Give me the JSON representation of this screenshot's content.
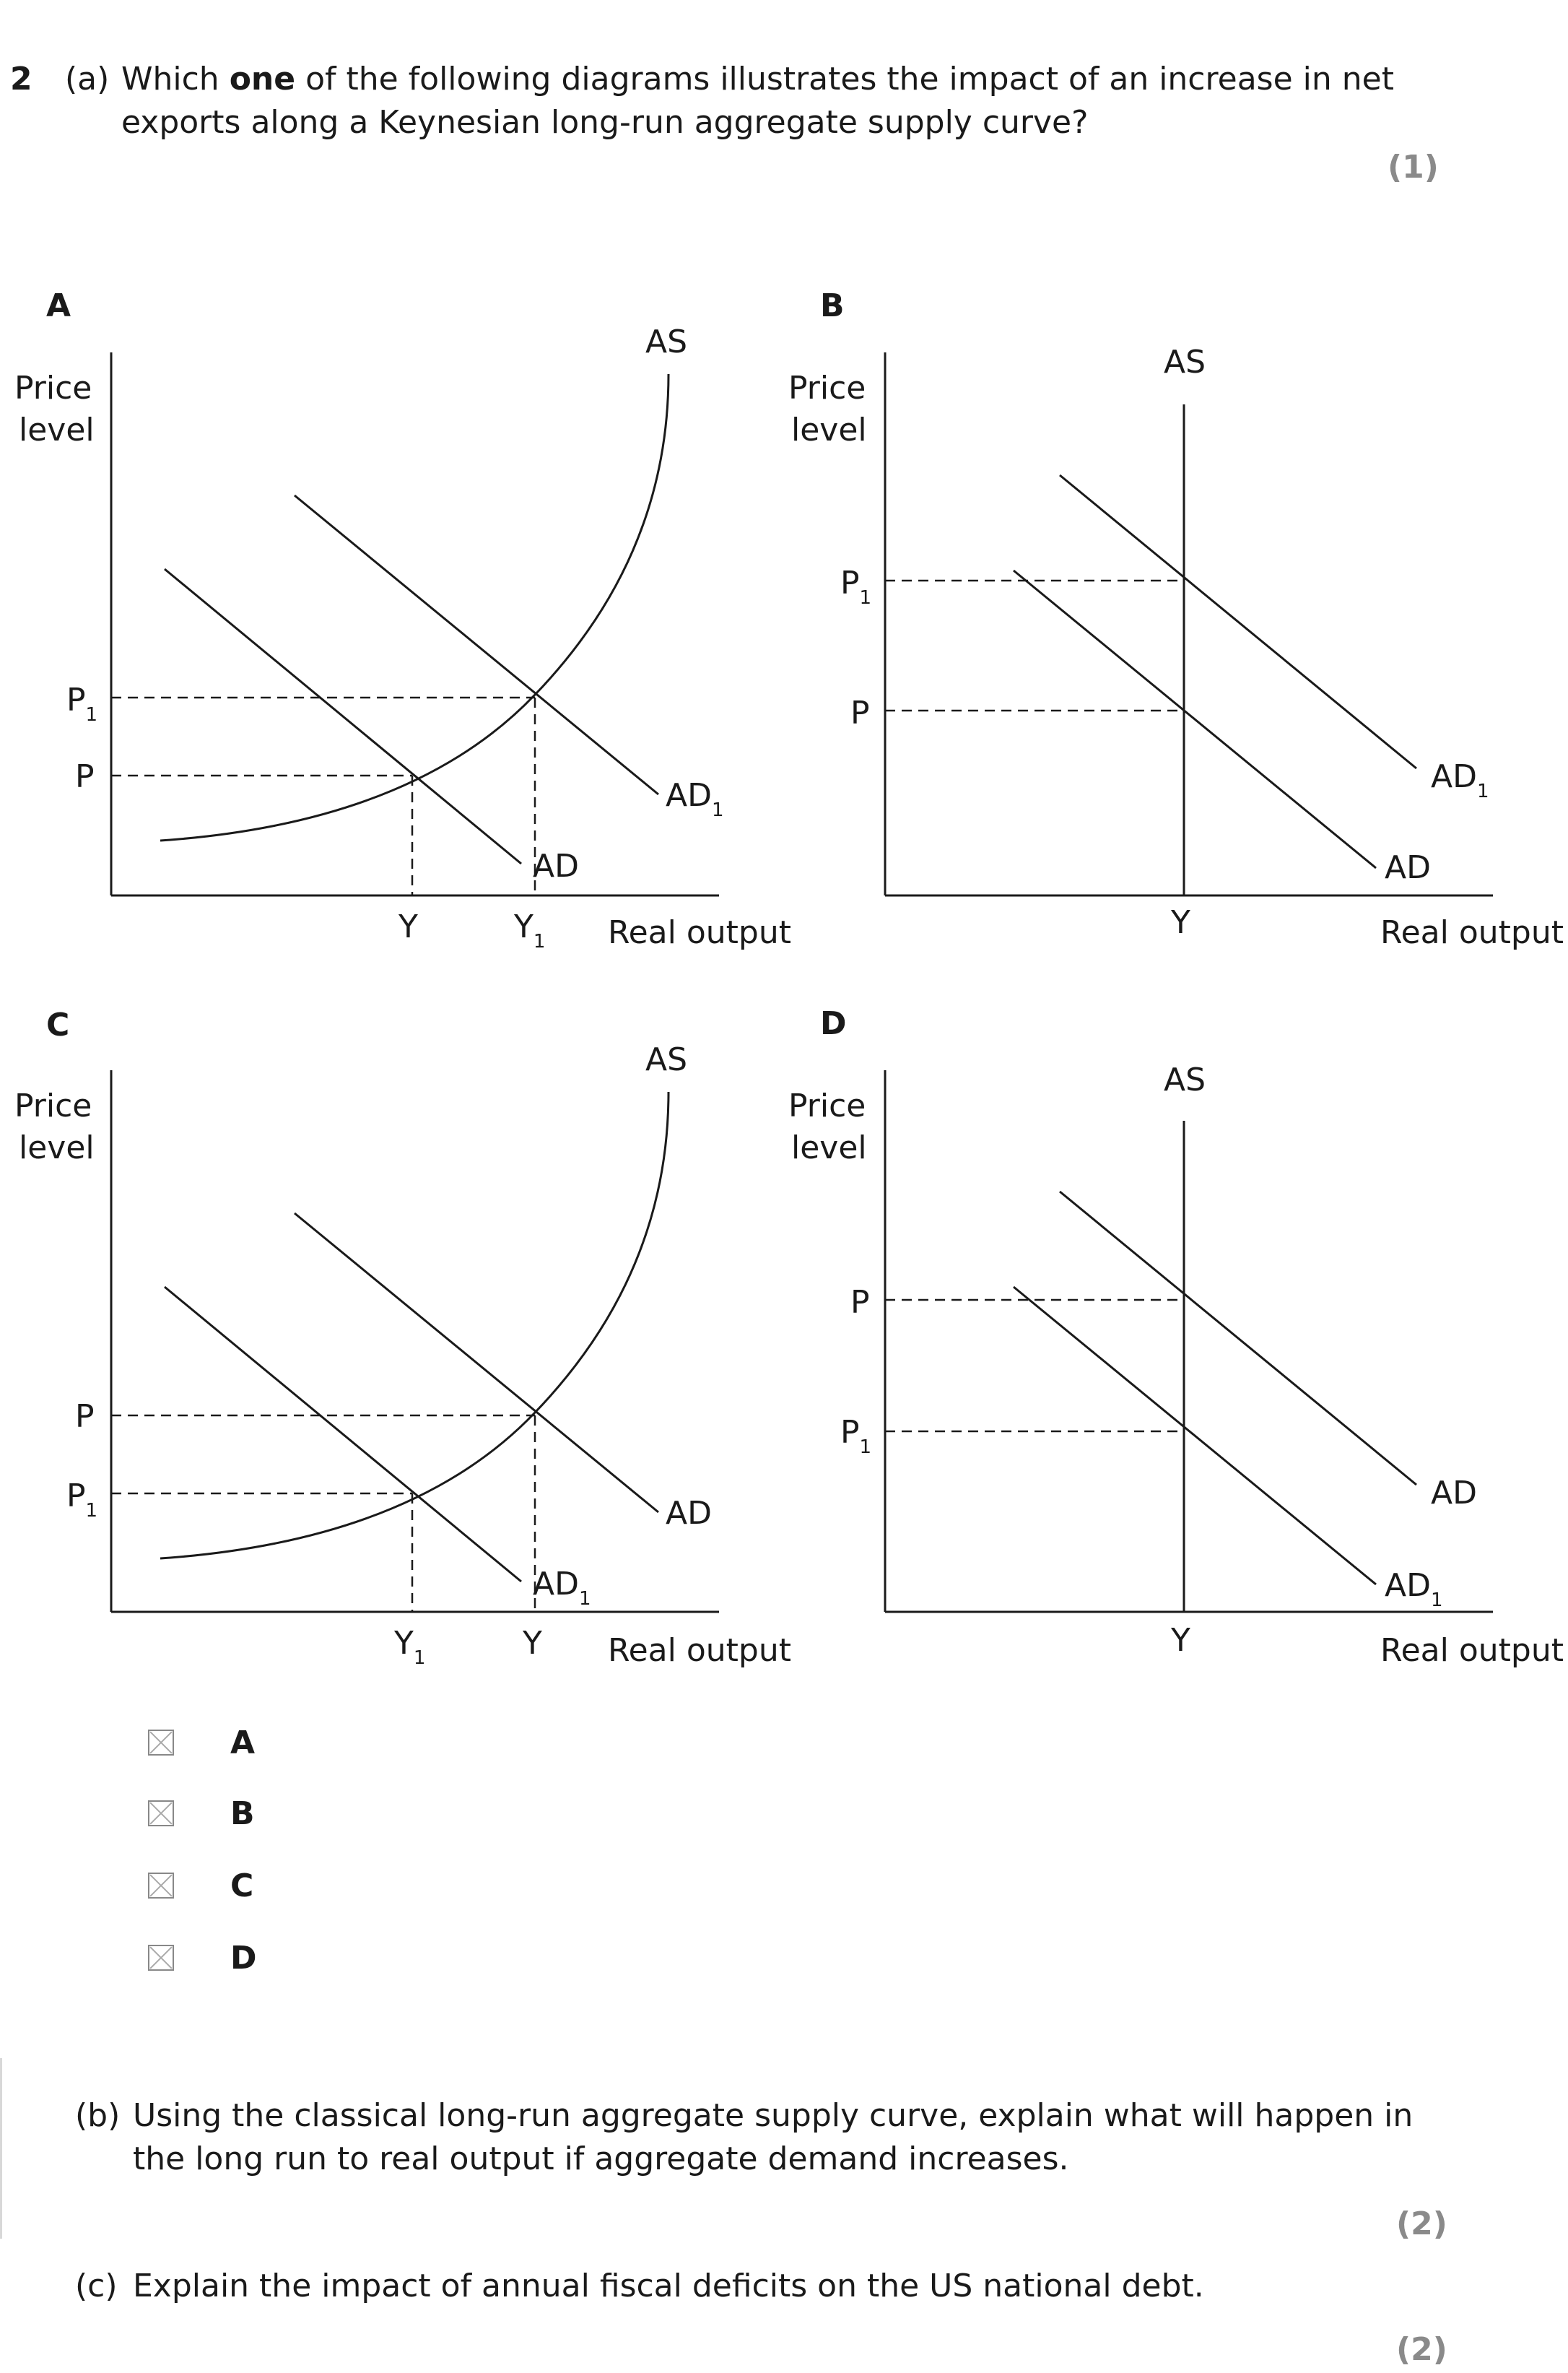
{
  "question": {
    "number": "2",
    "part_a_prefix": "(a)",
    "part_a_line1_pre": "Which ",
    "part_a_line1_bold": "one",
    "part_a_line1_post": " of the following diagrams illustrates the impact of an increase in net",
    "part_a_line2": "exports along a Keynesian long-run aggregate supply curve?",
    "part_a_marks": "(1)",
    "part_b_prefix": "(b)",
    "part_b_line1": "Using the classical long-run aggregate supply curve, explain what will happen in",
    "part_b_line2": "the long run to real output if aggregate demand increases.",
    "part_b_marks": "(2)",
    "part_c_prefix": "(c)",
    "part_c_line1": "Explain the impact of annual fiscal deficits on the US national debt.",
    "part_c_marks": "(2)"
  },
  "diagrams": {
    "A": {
      "letter": "A",
      "ylabel1": "Price",
      "ylabel2": "level",
      "xlabel": "Real output",
      "as": "AS",
      "ad_left": "AD",
      "ad_right": "AD",
      "ad_right_sub": "1",
      "p_upper": "P",
      "p_upper_sub": "1",
      "p_lower": "P",
      "p_lower_sub": "",
      "y_left": "Y",
      "y_left_sub": "",
      "y_right": "Y",
      "y_right_sub": "1"
    },
    "B": {
      "letter": "B",
      "ylabel1": "Price",
      "ylabel2": "level",
      "xlabel": "Real output",
      "as": "AS",
      "ad_left": "AD",
      "ad_right": "AD",
      "ad_right_sub": "1",
      "p_upper": "P",
      "p_upper_sub": "1",
      "p_lower": "P",
      "p_lower_sub": "",
      "y": "Y"
    },
    "C": {
      "letter": "C",
      "ylabel1": "Price",
      "ylabel2": "level",
      "xlabel": "Real output",
      "as": "AS",
      "ad_left": "AD",
      "ad_left_sub": "1",
      "ad_right": "AD",
      "p_upper": "P",
      "p_upper_sub": "",
      "p_lower": "P",
      "p_lower_sub": "1",
      "y_left": "Y",
      "y_left_sub": "1",
      "y_right": "Y",
      "y_right_sub": ""
    },
    "D": {
      "letter": "D",
      "ylabel1": "Price",
      "ylabel2": "level",
      "xlabel": "Real output",
      "as": "AS",
      "ad_left": "AD",
      "ad_left_sub": "1",
      "ad_right": "AD",
      "p_upper": "P",
      "p_upper_sub": "",
      "p_lower": "P",
      "p_lower_sub": "1",
      "y": "Y"
    }
  },
  "options": [
    "A",
    "B",
    "C",
    "D"
  ]
}
